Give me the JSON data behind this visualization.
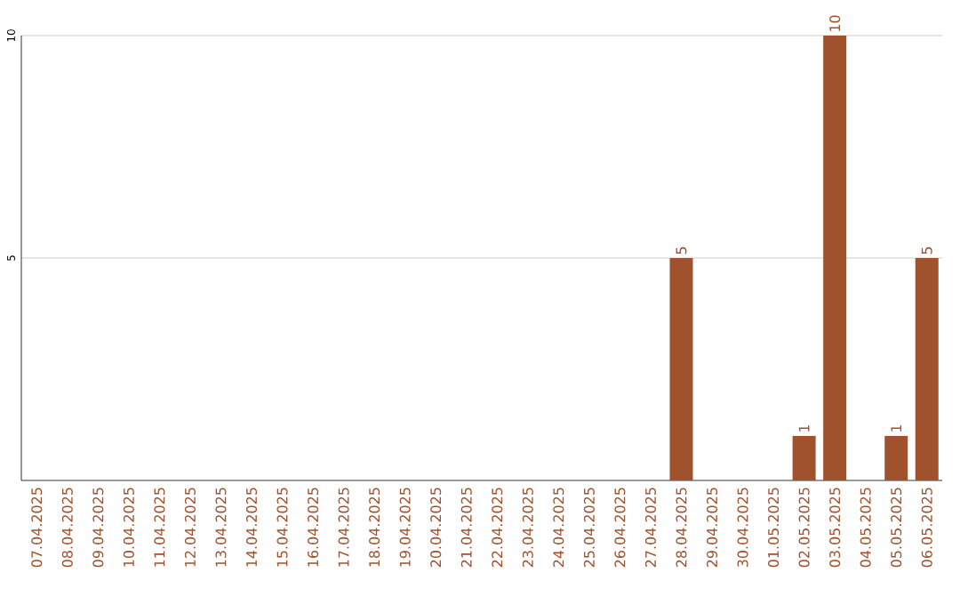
{
  "chart_data": {
    "type": "bar",
    "categories": [
      "07.04.2025",
      "08.04.2025",
      "09.04.2025",
      "10.04.2025",
      "11.04.2025",
      "12.04.2025",
      "13.04.2025",
      "14.04.2025",
      "15.04.2025",
      "16.04.2025",
      "17.04.2025",
      "18.04.2025",
      "19.04.2025",
      "20.04.2025",
      "21.04.2025",
      "22.04.2025",
      "23.04.2025",
      "24.04.2025",
      "25.04.2025",
      "26.04.2025",
      "27.04.2025",
      "28.04.2025",
      "29.04.2025",
      "30.04.2025",
      "01.05.2025",
      "02.05.2025",
      "03.05.2025",
      "04.05.2025",
      "05.05.2025",
      "06.05.2025"
    ],
    "values": [
      0,
      0,
      0,
      0,
      0,
      0,
      0,
      0,
      0,
      0,
      0,
      0,
      0,
      0,
      0,
      0,
      0,
      0,
      0,
      0,
      0,
      5,
      0,
      0,
      0,
      1,
      10,
      0,
      1,
      5
    ],
    "value_labels": [
      null,
      null,
      null,
      null,
      null,
      null,
      null,
      null,
      null,
      null,
      null,
      null,
      null,
      null,
      null,
      null,
      null,
      null,
      null,
      null,
      null,
      "5",
      null,
      null,
      null,
      "1",
      "10",
      null,
      "1",
      "5"
    ],
    "color": "#a0522d",
    "ylim": [
      0,
      10
    ],
    "yticks": [
      5,
      10
    ],
    "grid": "y"
  }
}
